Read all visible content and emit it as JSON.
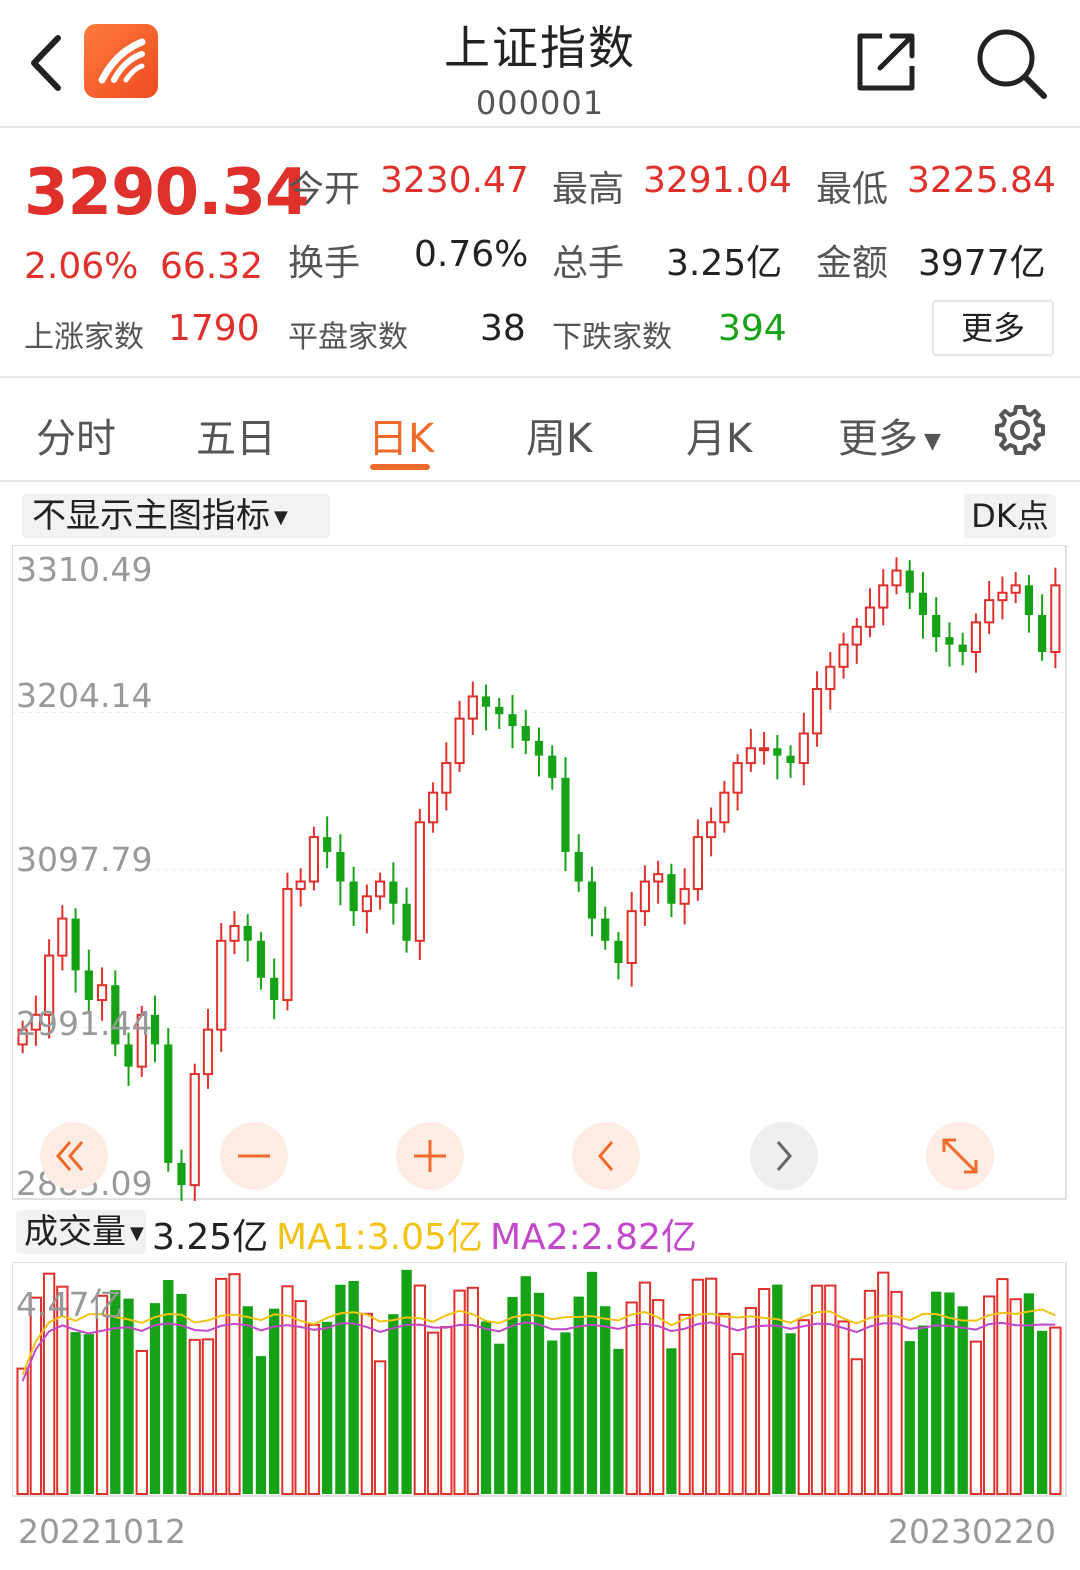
{
  "header": {
    "title": "上证指数",
    "code": "000001",
    "back_icon": "chevron-left-icon",
    "share_icon": "share-icon",
    "search_icon": "search-icon"
  },
  "quote": {
    "price": "3290.34",
    "change_pct": "2.06%",
    "change": "66.32",
    "open_label": "今开",
    "open": "3230.47",
    "high_label": "最高",
    "high": "3291.04",
    "low_label": "最低",
    "low": "3225.84",
    "turnover_label": "换手",
    "turnover": "0.76%",
    "volume_label": "总手",
    "volume": "3.25亿",
    "amount_label": "金额",
    "amount": "3977亿",
    "up_label": "上涨家数",
    "up": "1790",
    "flat_label": "平盘家数",
    "flat": "38",
    "down_label": "下跌家数",
    "down": "394",
    "more_label": "更多"
  },
  "tabs": [
    {
      "label": "分时"
    },
    {
      "label": "五日"
    },
    {
      "label": "日K",
      "active": true
    },
    {
      "label": "周K"
    },
    {
      "label": "月K"
    },
    {
      "label": "更多"
    }
  ],
  "chart": {
    "indicator_label": "不显示主图指标",
    "dk_label": "DK点",
    "y_ticks": [
      "3310.49",
      "3204.14",
      "3097.79",
      "2991.44",
      "2885.09"
    ],
    "volume_label": "成交量",
    "volume_value": "3.25亿",
    "ma1": "MA1:3.05亿",
    "ma2": "MA2:2.82亿",
    "volume_max": "4.47亿",
    "start_date": "20221012",
    "end_date": "20230220"
  },
  "colors": {
    "up": "#e0302b",
    "down": "#16a216",
    "accent": "#f06b2b",
    "ma1": "#f2c315",
    "ma2": "#c248c9"
  },
  "chart_data": {
    "type": "candlestick",
    "x_range": [
      "20221012",
      "20230220"
    ],
    "ylim": [
      2885.09,
      3310.49
    ],
    "close_values": [
      2990,
      3000,
      3040,
      3065,
      3030,
      3010,
      3020,
      2980,
      2965,
      3000,
      2980,
      2900,
      2885,
      2960,
      2990,
      3050,
      3060,
      3050,
      3025,
      3010,
      3085,
      3090,
      3120,
      3110,
      3090,
      3070,
      3080,
      3090,
      3075,
      3050,
      3130,
      3150,
      3170,
      3200,
      3215,
      3208,
      3203,
      3195,
      3185,
      3175,
      3160,
      3110,
      3090,
      3065,
      3050,
      3035,
      3070,
      3090,
      3095,
      3075,
      3085,
      3120,
      3130,
      3150,
      3170,
      3180,
      3180,
      3175,
      3170,
      3190,
      3220,
      3235,
      3250,
      3262,
      3275,
      3290,
      3300,
      3285,
      3270,
      3255,
      3250,
      3245,
      3265,
      3280,
      3285,
      3290,
      3270,
      3245,
      3290
    ],
    "volume_max": "4.47亿",
    "volume_last": "3.25亿",
    "ma1_last": "3.05亿",
    "ma2_last": "2.82亿"
  }
}
